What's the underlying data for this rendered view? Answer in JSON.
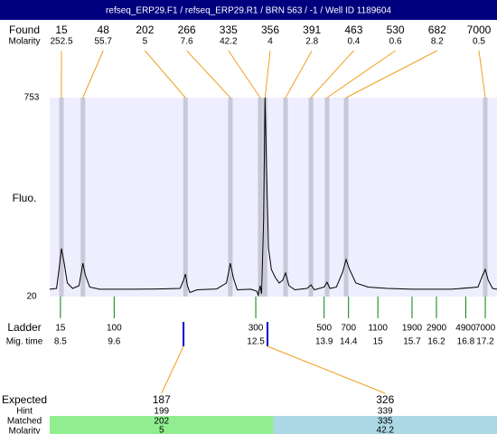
{
  "title": "refseq_ERP29.F1 / refseq_ERP29.R1 / BRN 563 / -1 / Well ID 1189604",
  "found": {
    "label": "Found",
    "molarity_label": "Molarity",
    "peaks": [
      {
        "size": 15,
        "molarity": 252.5,
        "time": 8.52
      },
      {
        "size": 48,
        "molarity": 55.7,
        "time": 8.96
      },
      {
        "size": 202,
        "molarity": 5,
        "time": 11.06
      },
      {
        "size": 266,
        "molarity": 7.6,
        "time": 11.98
      },
      {
        "size": 335,
        "molarity": 42.2,
        "time": 12.59
      },
      {
        "size": 356,
        "molarity": 4,
        "time": 12.69
      },
      {
        "size": 391,
        "molarity": 2.8,
        "time": 13.11
      },
      {
        "size": 463,
        "molarity": 0.4,
        "time": 13.63
      },
      {
        "size": 530,
        "molarity": 0.6,
        "time": 13.96
      },
      {
        "size": 682,
        "molarity": 8.2,
        "time": 14.35
      },
      {
        "size": 7000,
        "molarity": 0.5,
        "time": 17.2
      }
    ]
  },
  "plot": {
    "y_label": "Fluo.",
    "ylim": [
      20,
      753
    ],
    "yticks": [
      20,
      753
    ],
    "xlim": [
      8.28,
      17.44
    ],
    "trace": {
      "time": [
        8.28,
        8.42,
        8.47,
        8.52,
        8.57,
        8.64,
        8.75,
        8.88,
        8.93,
        8.96,
        9.01,
        9.1,
        9.3,
        10.0,
        10.5,
        10.95,
        11.02,
        11.06,
        11.1,
        11.15,
        11.3,
        11.7,
        11.9,
        11.98,
        12.04,
        12.12,
        12.4,
        12.52,
        12.55,
        12.59,
        12.62,
        12.66,
        12.69,
        12.72,
        12.76,
        12.82,
        12.9,
        12.98,
        13.05,
        13.11,
        13.18,
        13.3,
        13.55,
        13.63,
        13.7,
        13.9,
        13.96,
        14.02,
        14.15,
        14.28,
        14.35,
        14.42,
        14.55,
        14.8,
        15.2,
        15.7,
        16.5,
        17.05,
        17.15,
        17.2,
        17.26,
        17.35,
        17.44
      ],
      "fluo": [
        47,
        50,
        120,
        197,
        150,
        70,
        50,
        60,
        110,
        143,
        100,
        55,
        47,
        47,
        48,
        50,
        80,
        103,
        60,
        35,
        45,
        48,
        70,
        143,
        90,
        45,
        47,
        40,
        25,
        60,
        30,
        300,
        753,
        500,
        200,
        120,
        90,
        70,
        80,
        107,
        60,
        45,
        50,
        63,
        45,
        55,
        73,
        50,
        55,
        110,
        157,
        120,
        70,
        55,
        50,
        47,
        47,
        55,
        100,
        120,
        80,
        50,
        47
      ]
    }
  },
  "ladder": {
    "label": "Ladder",
    "time_label": "Mig. time",
    "markers": [
      {
        "size": 15,
        "time": 8.5
      },
      {
        "size": 100,
        "time": 9.6
      },
      {
        "size": 300,
        "time": 12.5
      },
      {
        "size": 500,
        "time": 13.9
      },
      {
        "size": 700,
        "time": 14.4
      },
      {
        "size": 1100,
        "time": 15
      },
      {
        "size": 1900,
        "time": 15.7
      },
      {
        "size": 2900,
        "time": 16.2
      },
      {
        "size": 4900,
        "time": 16.8
      },
      {
        "size": 7000,
        "time": 17.2
      }
    ]
  },
  "expected": {
    "label": "Expected",
    "hint_label": "Hint",
    "matched_label": "Matched",
    "molarity_label": "Molarity",
    "rows": [
      {
        "expected": 187,
        "hint": 199,
        "matched": 202,
        "molarity": 5,
        "time": 11.02,
        "color": "#90ee90"
      },
      {
        "expected": 326,
        "hint": 339,
        "matched": 335,
        "molarity": 42.2,
        "time": 12.74,
        "color": "#add8e6"
      }
    ]
  }
}
